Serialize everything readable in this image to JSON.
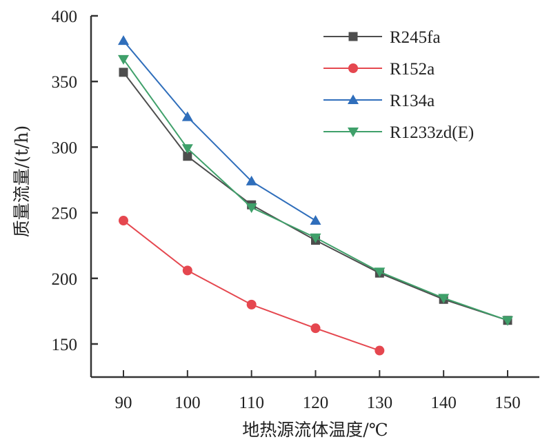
{
  "chart_data": {
    "type": "line",
    "title": "",
    "xlabel": "地热源流体温度/℃",
    "ylabel": "质量流量/(t/h)",
    "x": [
      90,
      100,
      110,
      120,
      130,
      140,
      150
    ],
    "xticks": [
      "90",
      "100",
      "110",
      "120",
      "130",
      "140",
      "150"
    ],
    "yticks": [
      "150",
      "200",
      "250",
      "300",
      "350",
      "400"
    ],
    "xlim": [
      85,
      155
    ],
    "ylim": [
      125,
      400
    ],
    "grid": false,
    "legend_position": "top-right",
    "series": [
      {
        "name": "R245fa",
        "marker": "square",
        "color": "#4d4d4d",
        "x": [
          90,
          100,
          110,
          120,
          130,
          140,
          150
        ],
        "values": [
          357,
          293,
          256,
          229,
          204,
          184,
          168
        ]
      },
      {
        "name": "R152a",
        "marker": "circle",
        "color": "#e5474f",
        "x": [
          90,
          100,
          110,
          120,
          130
        ],
        "values": [
          244,
          206,
          180,
          162,
          145
        ]
      },
      {
        "name": "R134a",
        "marker": "triangle-up",
        "color": "#2f6ebb",
        "x": [
          90,
          100,
          110,
          120
        ],
        "values": [
          381,
          323,
          274,
          244
        ]
      },
      {
        "name": "R1233zd(E)",
        "marker": "triangle-down",
        "color": "#3fa06a",
        "x": [
          90,
          100,
          110,
          120,
          130,
          140,
          150
        ],
        "values": [
          367,
          299,
          254,
          231,
          205,
          185,
          168
        ]
      }
    ]
  }
}
